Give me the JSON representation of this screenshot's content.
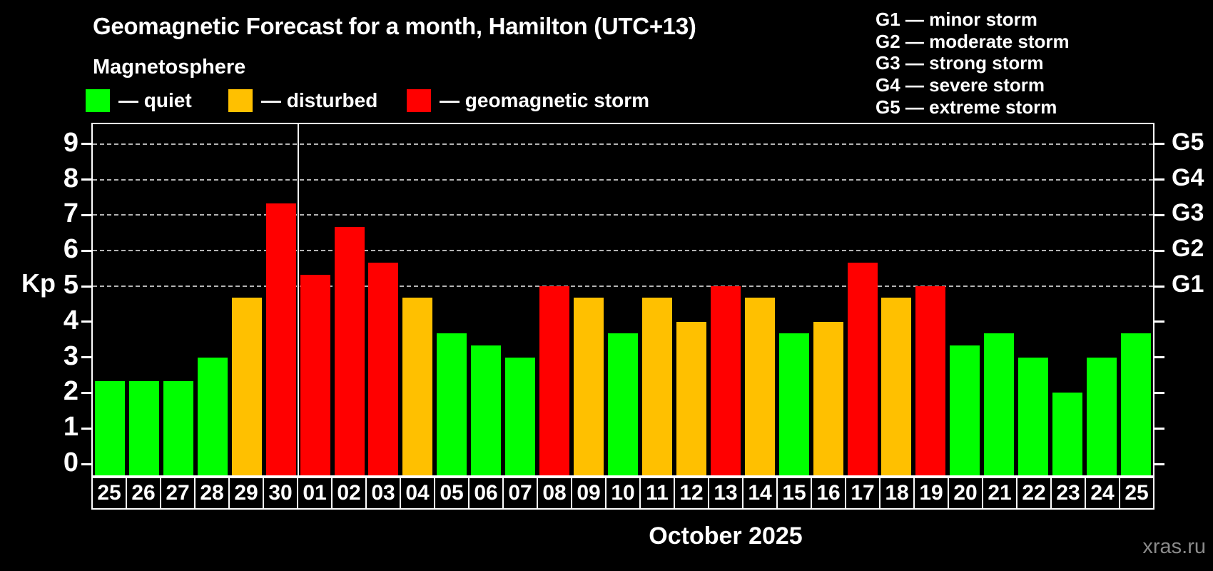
{
  "title": "Geomagnetic Forecast for a month, Hamilton (UTC+13)",
  "subtitle": "Magnetosphere",
  "legend": {
    "items": [
      {
        "status": "quiet",
        "label": "— quiet",
        "color": "#00ff00"
      },
      {
        "status": "disturbed",
        "label": "— disturbed",
        "color": "#ffc000"
      },
      {
        "status": "storm",
        "label": "— geomagnetic storm",
        "color": "#ff0000"
      }
    ]
  },
  "storm_scale_legend": {
    "lines": [
      "G1 — minor storm",
      "G2 — moderate storm",
      "G3 — strong storm",
      "G4 — severe storm",
      "G5 — extreme storm"
    ]
  },
  "axis": {
    "y_label": "Kp"
  },
  "footer": {
    "month_label": "October 2025",
    "watermark": "xras.ru"
  },
  "chart_data": {
    "type": "bar",
    "title": "Geomagnetic Forecast for a month, Hamilton (UTC+13)",
    "subtitle": "Magnetosphere",
    "xlabel": "October 2025",
    "ylabel": "Kp",
    "ylim": [
      0,
      9
    ],
    "y_ticks": [
      0,
      1,
      2,
      3,
      4,
      5,
      6,
      7,
      8,
      9
    ],
    "gridlines_at": [
      5,
      6,
      7,
      8,
      9
    ],
    "grid": "horizontal dashed lines at Kp 5-9",
    "right_axis_labels": {
      "5": "G1",
      "6": "G2",
      "7": "G3",
      "8": "G4",
      "9": "G5"
    },
    "legend_position": "top",
    "month_separator_after_index": 5,
    "categories": [
      "25",
      "26",
      "27",
      "28",
      "29",
      "30",
      "01",
      "02",
      "03",
      "04",
      "05",
      "06",
      "07",
      "08",
      "09",
      "10",
      "11",
      "12",
      "13",
      "14",
      "15",
      "16",
      "17",
      "18",
      "19",
      "20",
      "21",
      "22",
      "23",
      "24",
      "25"
    ],
    "values": [
      2.33,
      2.33,
      2.33,
      3.0,
      4.67,
      7.33,
      5.33,
      6.67,
      5.67,
      4.67,
      3.67,
      3.33,
      3.0,
      5.0,
      4.67,
      3.67,
      4.67,
      4.0,
      5.0,
      4.67,
      3.67,
      4.0,
      5.67,
      4.67,
      5.0,
      3.33,
      3.67,
      3.0,
      2.0,
      3.0,
      3.67
    ],
    "statuses": [
      "quiet",
      "quiet",
      "quiet",
      "quiet",
      "disturbed",
      "storm",
      "storm",
      "storm",
      "storm",
      "disturbed",
      "quiet",
      "quiet",
      "quiet",
      "storm",
      "disturbed",
      "quiet",
      "disturbed",
      "disturbed",
      "storm",
      "disturbed",
      "quiet",
      "disturbed",
      "storm",
      "disturbed",
      "storm",
      "quiet",
      "quiet",
      "quiet",
      "quiet",
      "quiet",
      "quiet"
    ]
  }
}
